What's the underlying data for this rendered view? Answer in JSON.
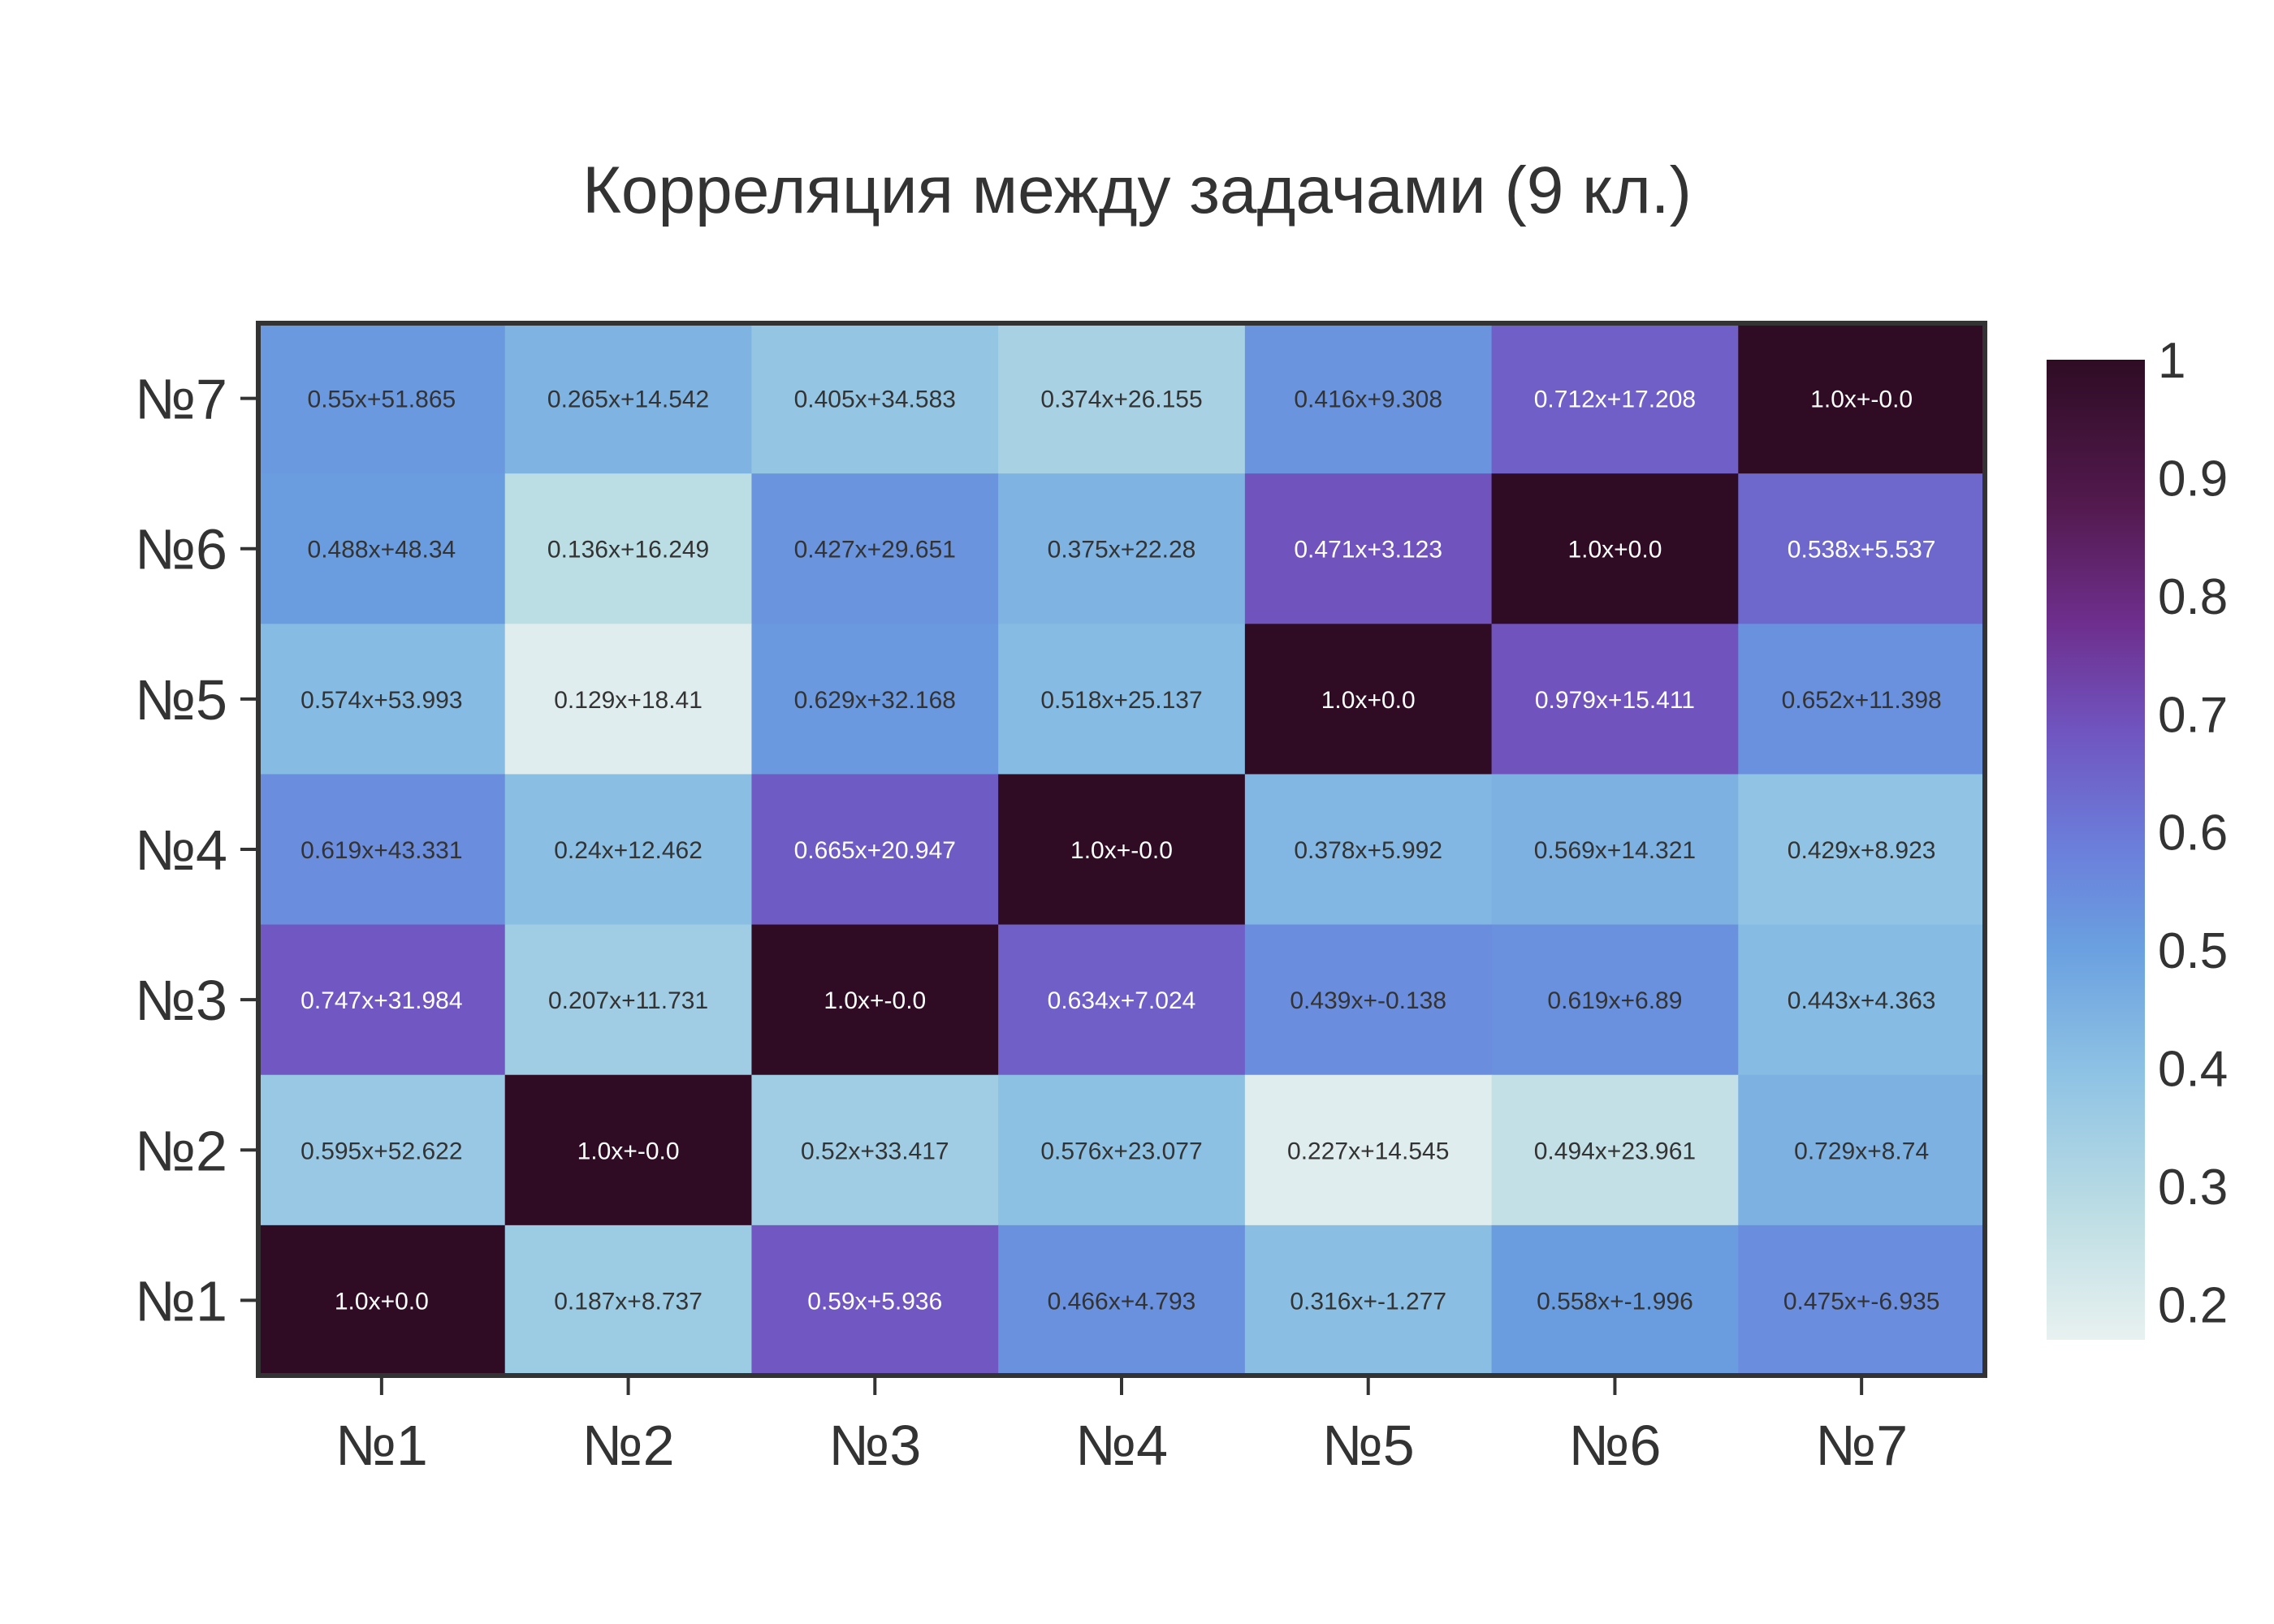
{
  "chart_data": {
    "type": "heatmap",
    "title": "Корреляция между задачами (9 кл.)",
    "xlabel": "",
    "ylabel": "",
    "x_categories": [
      "№1",
      "№2",
      "№3",
      "№4",
      "№5",
      "№6",
      "№7"
    ],
    "y_categories": [
      "№1",
      "№2",
      "№3",
      "№4",
      "№5",
      "№6",
      "№7"
    ],
    "rows": [
      {
        "y": "№7",
        "values": [
          0.52,
          0.44,
          0.38,
          0.33,
          0.53,
          0.66,
          1.0
        ],
        "labels": [
          "0.55x+51.865",
          "0.265x+14.542",
          "0.405x+34.583",
          "0.374x+26.155",
          "0.416x+9.308",
          "0.712x+17.208",
          "1.0x+-0.0"
        ]
      },
      {
        "y": "№6",
        "values": [
          0.51,
          0.28,
          0.53,
          0.44,
          0.69,
          1.0,
          0.64
        ],
        "labels": [
          "0.488x+48.34",
          "0.136x+16.249",
          "0.427x+29.651",
          "0.375x+22.28",
          "0.471x+3.123",
          "1.0x+0.0",
          "0.538x+5.537"
        ]
      },
      {
        "y": "№5",
        "values": [
          0.42,
          0.19,
          0.52,
          0.42,
          1.0,
          0.69,
          0.54
        ],
        "labels": [
          "0.574x+53.993",
          "0.129x+18.41",
          "0.629x+32.168",
          "0.518x+25.137",
          "1.0x+0.0",
          "0.979x+15.411",
          "0.652x+11.398"
        ]
      },
      {
        "y": "№4",
        "values": [
          0.55,
          0.41,
          0.67,
          1.0,
          0.43,
          0.45,
          0.39
        ],
        "labels": [
          "0.619x+43.331",
          "0.24x+12.462",
          "0.665x+20.947",
          "1.0x+-0.0",
          "0.378x+5.992",
          "0.569x+14.321",
          "0.429x+8.923"
        ]
      },
      {
        "y": "№3",
        "values": [
          0.68,
          0.35,
          1.0,
          0.66,
          0.55,
          0.54,
          0.42
        ],
        "labels": [
          "0.747x+31.984",
          "0.207x+11.731",
          "1.0x+-0.0",
          "0.634x+7.024",
          "0.439x+-0.138",
          "0.619x+6.89",
          "0.443x+4.363"
        ]
      },
      {
        "y": "№2",
        "values": [
          0.37,
          1.0,
          0.35,
          0.4,
          0.19,
          0.26,
          0.45
        ],
        "labels": [
          "0.595x+52.622",
          "1.0x+-0.0",
          "0.52x+33.417",
          "0.576x+23.077",
          "0.227x+14.545",
          "0.494x+23.961",
          "0.729x+8.74"
        ]
      },
      {
        "y": "№1",
        "values": [
          1.0,
          0.36,
          0.68,
          0.54,
          0.41,
          0.51,
          0.55
        ],
        "labels": [
          "1.0x+0.0",
          "0.187x+8.737",
          "0.59x+5.936",
          "0.466x+4.793",
          "0.316x+-1.277",
          "0.558x+-1.996",
          "0.475x+-6.935"
        ]
      }
    ],
    "colorbar": {
      "range": [
        0.17,
        1.0
      ],
      "ticks": [
        1,
        0.9,
        0.8,
        0.7,
        0.6,
        0.5,
        0.4,
        0.3,
        0.2
      ],
      "tick_labels": [
        "1",
        "0.9",
        "0.8",
        "0.7",
        "0.6",
        "0.5",
        "0.4",
        "0.3",
        "0.2"
      ],
      "colorscale": [
        [
          0.0,
          "#e8f1f0"
        ],
        [
          0.13,
          "#bcdde4"
        ],
        [
          0.27,
          "#8fc3e4"
        ],
        [
          0.4,
          "#6aa0e0"
        ],
        [
          0.5,
          "#6b7fdb"
        ],
        [
          0.62,
          "#7055c0"
        ],
        [
          0.73,
          "#6e2f8e"
        ],
        [
          0.85,
          "#531a4f"
        ],
        [
          1.0,
          "#2f0c24"
        ]
      ]
    },
    "grid": false,
    "legend": "right"
  }
}
